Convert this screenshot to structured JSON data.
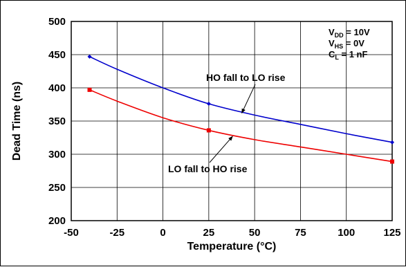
{
  "chart_data": {
    "type": "line",
    "xlabel": "Temperature (°C)",
    "ylabel": "Dead Time (ns)",
    "xlim": [
      -50,
      125
    ],
    "ylim": [
      200,
      500
    ],
    "x_ticks": [
      "-50",
      "-25",
      "0",
      "25",
      "50",
      "75",
      "100",
      "125"
    ],
    "y_ticks": [
      "200",
      "250",
      "300",
      "350",
      "400",
      "450",
      "500"
    ],
    "grid": true,
    "series": [
      {
        "name": "HO fall to LO rise",
        "color": "#0000cc",
        "marker": "diamond",
        "points": [
          [
            -40,
            447
          ],
          [
            -25,
            428
          ],
          [
            0,
            400
          ],
          [
            25,
            376
          ],
          [
            50,
            359
          ],
          [
            75,
            345
          ],
          [
            100,
            331
          ],
          [
            125,
            318
          ]
        ],
        "marked_x": [
          -40,
          25,
          125
        ]
      },
      {
        "name": "LO fall to HO rise",
        "color": "#ee0000",
        "marker": "square",
        "points": [
          [
            -40,
            397
          ],
          [
            -25,
            380
          ],
          [
            0,
            355
          ],
          [
            25,
            336
          ],
          [
            50,
            322
          ],
          [
            75,
            311
          ],
          [
            100,
            300
          ],
          [
            125,
            289
          ]
        ],
        "marked_x": [
          -40,
          25,
          125
        ]
      }
    ],
    "conditions": [
      {
        "main": "V",
        "sub": "DD",
        "rest": " = 10V"
      },
      {
        "main": "V",
        "sub": "HS",
        "rest": " = 0V"
      },
      {
        "main": "C",
        "sub": "L",
        "rest": " = 1 nF"
      }
    ]
  }
}
